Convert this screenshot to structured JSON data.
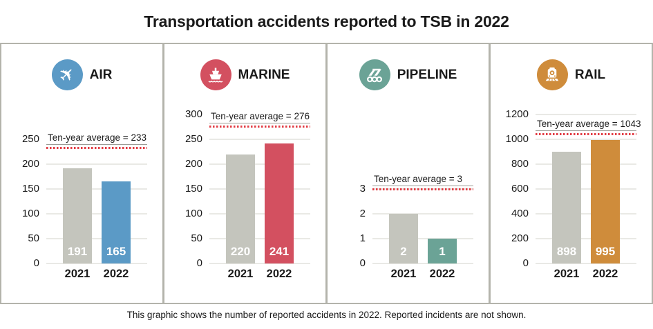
{
  "title": "Transportation accidents reported to TSB in 2022",
  "caption": "This graphic shows the number of reported accidents in 2022. Reported incidents are not shown.",
  "colors": {
    "border": "#b3b3ab",
    "grid": "#e9e9e5",
    "average_line": "#e23b43",
    "average_underline": "#9b9b95",
    "bar_2021_gray": "#c4c5bd",
    "air_blue": "#5b9ac6",
    "marine_red": "#d35060",
    "pipeline_teal": "#6ba396",
    "rail_orange": "#cf8c3b"
  },
  "chart_data": [
    {
      "type": "bar",
      "title": "AIR",
      "icon": "airplane-icon",
      "accent": "#5b9ac6",
      "categories": [
        "2021",
        "2022"
      ],
      "values": [
        191,
        165
      ],
      "bar_colors": [
        "#c4c5bd",
        "#5b9ac6"
      ],
      "average": 233,
      "average_label": "Ten-year average = 233",
      "ylim": [
        0,
        250
      ],
      "yticks": [
        0,
        50,
        100,
        150,
        200,
        250
      ]
    },
    {
      "type": "bar",
      "title": "MARINE",
      "icon": "ship-icon",
      "accent": "#d35060",
      "categories": [
        "2021",
        "2022"
      ],
      "values": [
        220,
        241
      ],
      "bar_colors": [
        "#c4c5bd",
        "#d35060"
      ],
      "average": 276,
      "average_label": "Ten-year average = 276",
      "ylim": [
        0,
        300
      ],
      "yticks": [
        0,
        50,
        100,
        150,
        200,
        250,
        300
      ]
    },
    {
      "type": "bar",
      "title": "PIPELINE",
      "icon": "pipeline-icon",
      "accent": "#6ba396",
      "categories": [
        "2021",
        "2022"
      ],
      "values": [
        2,
        1
      ],
      "bar_colors": [
        "#c4c5bd",
        "#6ba396"
      ],
      "average": 3,
      "average_label": "Ten-year average = 3",
      "ylim": [
        0,
        3
      ],
      "yticks": [
        0,
        1,
        2,
        3
      ]
    },
    {
      "type": "bar",
      "title": "RAIL",
      "icon": "locomotive-icon",
      "accent": "#cf8c3b",
      "categories": [
        "2021",
        "2022"
      ],
      "values": [
        898,
        995
      ],
      "bar_colors": [
        "#c4c5bd",
        "#cf8c3b"
      ],
      "average": 1043,
      "average_label": "Ten-year average = 1043",
      "ylim": [
        0,
        1200
      ],
      "yticks": [
        0,
        200,
        400,
        600,
        800,
        1000,
        1200
      ]
    }
  ]
}
